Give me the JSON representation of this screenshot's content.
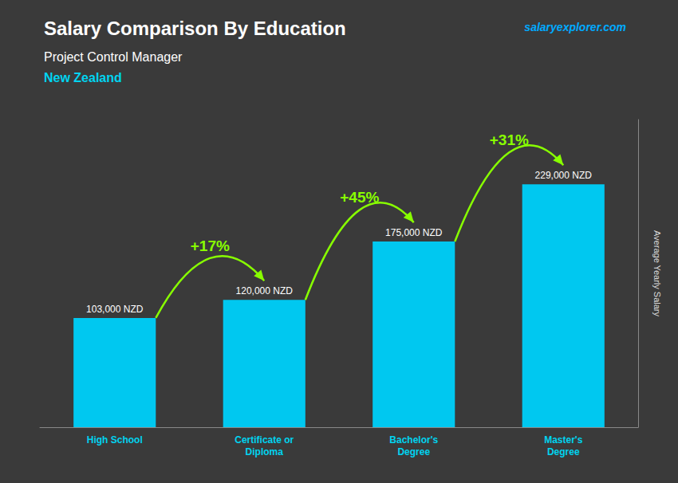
{
  "chart_data": {
    "type": "bar",
    "title": "Salary Comparison By Education",
    "subtitle": "Project Control Manager",
    "country": "New Zealand",
    "source": "salaryexplorer.com",
    "ylabel": "Average Yearly Salary",
    "categories": [
      "High School",
      "Certificate or\nDiploma",
      "Bachelor's\nDegree",
      "Master's\nDegree"
    ],
    "values": [
      103000,
      120000,
      175000,
      229000
    ],
    "value_labels": [
      "103,000 NZD",
      "120,000 NZD",
      "175,000 NZD",
      "229,000 NZD"
    ],
    "change_labels": [
      "+17%",
      "+45%",
      "+31%"
    ],
    "color": "#00c8f0",
    "data_labels": true,
    "ylim": [
      0,
      290000
    ],
    "tick_labels": "x",
    "grid": false
  }
}
